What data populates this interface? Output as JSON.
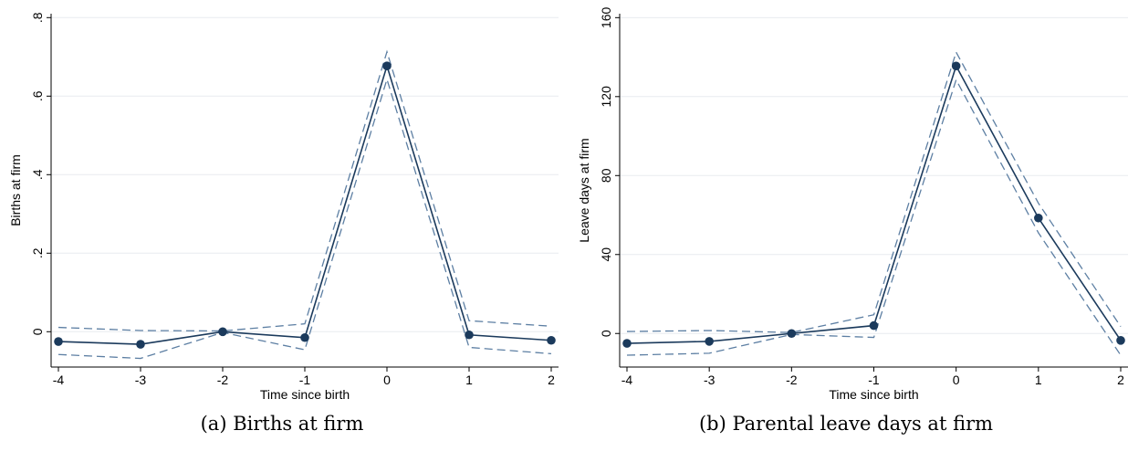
{
  "chart_data": [
    {
      "type": "line",
      "panel_caption": "(a) Births at firm",
      "xlabel": "Time since birth",
      "ylabel": "Births at firm",
      "x": [
        -4,
        -3,
        -2,
        -1,
        0,
        1,
        2
      ],
      "xticks": [
        "-4",
        "-3",
        "-2",
        "-1",
        "0",
        "1",
        "2"
      ],
      "yticks": [
        0,
        0.2,
        0.4,
        0.6,
        0.8
      ],
      "ytick_labels": [
        "0",
        ".2",
        ".4",
        ".6",
        ".8"
      ],
      "xlim": [
        -4,
        2
      ],
      "ylim": [
        -0.09,
        0.81
      ],
      "grid": true,
      "series": [
        {
          "role": "estimate",
          "values": [
            -0.025,
            -0.032,
            0.0,
            -0.015,
            0.677,
            -0.008,
            -0.022
          ]
        },
        {
          "role": "ci_upper",
          "values": [
            0.011,
            0.003,
            0.002,
            0.02,
            0.713,
            0.028,
            0.014
          ]
        },
        {
          "role": "ci_lower",
          "values": [
            -0.058,
            -0.068,
            -0.002,
            -0.046,
            0.643,
            -0.04,
            -0.056
          ]
        }
      ],
      "colors": {
        "estimate": "#1b3a5c",
        "ci": "#5d7fa3",
        "grid": "#e8ecef"
      }
    },
    {
      "type": "line",
      "panel_caption": "(b) Parental leave days at firm",
      "xlabel": "Time since birth",
      "ylabel": "Leave days at firm",
      "x": [
        -4,
        -3,
        -2,
        -1,
        0,
        1,
        2
      ],
      "xticks": [
        "-4",
        "-3",
        "-2",
        "-1",
        "0",
        "1",
        "2"
      ],
      "yticks": [
        0,
        40,
        80,
        120,
        160
      ],
      "ytick_labels": [
        "0",
        "40",
        "80",
        "120",
        "160"
      ],
      "xlim": [
        -4,
        2
      ],
      "ylim": [
        -17,
        162
      ],
      "grid": true,
      "series": [
        {
          "role": "estimate",
          "values": [
            -5,
            -4,
            0,
            4,
            135.5,
            58.5,
            -3.5
          ]
        },
        {
          "role": "ci_upper",
          "values": [
            1,
            1.5,
            0.5,
            9.5,
            142.5,
            66,
            3.5
          ]
        },
        {
          "role": "ci_lower",
          "values": [
            -11,
            -10,
            -0.5,
            -2,
            128.5,
            51,
            -11
          ]
        }
      ],
      "colors": {
        "estimate": "#1b3a5c",
        "ci": "#5d7fa3",
        "grid": "#e8ecef"
      }
    }
  ]
}
